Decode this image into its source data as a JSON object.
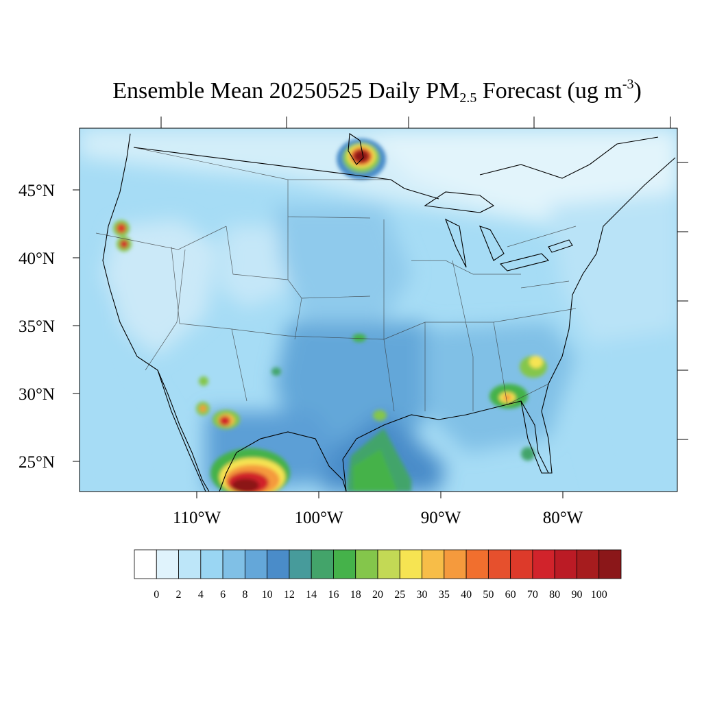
{
  "title": {
    "main": "Ensemble Mean 20250525 Daily PM",
    "sub": "2.5",
    "rest": " Forecast (ug m",
    "sup": "-3",
    "end": ")"
  },
  "map": {
    "region": "Contiguous United States",
    "lat_labels": [
      "45°N",
      "40°N",
      "35°N",
      "30°N",
      "25°N"
    ],
    "lon_labels": [
      "110°W",
      "100°W",
      "90°W",
      "80°W"
    ],
    "lat_values": [
      45,
      40,
      35,
      30,
      25
    ],
    "lon_values": [
      -110,
      -100,
      -90,
      -80
    ],
    "background_color": "#a6dcf5",
    "hotspots": [
      {
        "location": "southern Manitoba / Minnesota border",
        "lon": -97,
        "lat": 48,
        "level": 100
      },
      {
        "location": "northern California / southern Oregon",
        "lon": -121.5,
        "lat": 42,
        "level": 80
      },
      {
        "location": "northern California",
        "lon": -121.2,
        "lat": 40.8,
        "level": 80
      },
      {
        "location": "northern Mexico (Sierra Madre)",
        "lon": -107,
        "lat": 24,
        "level": 100
      },
      {
        "location": "Chihuahua, Mexico",
        "lon": -102.8,
        "lat": 28,
        "level": 70
      },
      {
        "location": "Sonora, Mexico",
        "lon": -108.5,
        "lat": 28.8,
        "level": 40
      },
      {
        "location": "southern Georgia / northern Florida",
        "lon": -83.3,
        "lat": 30.8,
        "level": 35
      },
      {
        "location": "South Carolina",
        "lon": -80.5,
        "lat": 32.5,
        "level": 25
      }
    ]
  },
  "colorbar": {
    "levels": [
      "0",
      "2",
      "4",
      "6",
      "8",
      "10",
      "12",
      "14",
      "16",
      "18",
      "20",
      "25",
      "30",
      "35",
      "40",
      "50",
      "60",
      "70",
      "80",
      "90",
      "100"
    ],
    "colors": [
      "#ffffff",
      "#e0f3fc",
      "#bde6f9",
      "#9ad6f3",
      "#80c0e6",
      "#64a7d9",
      "#4a8cc9",
      "#479b9b",
      "#43a46a",
      "#45b24a",
      "#84c64b",
      "#c3d955",
      "#f6e452",
      "#f7bd48",
      "#f59a3d",
      "#f16f2e",
      "#e6502d",
      "#dd3a2a",
      "#d1232b",
      "#bb1b25",
      "#a61c1e",
      "#8b1719"
    ]
  }
}
